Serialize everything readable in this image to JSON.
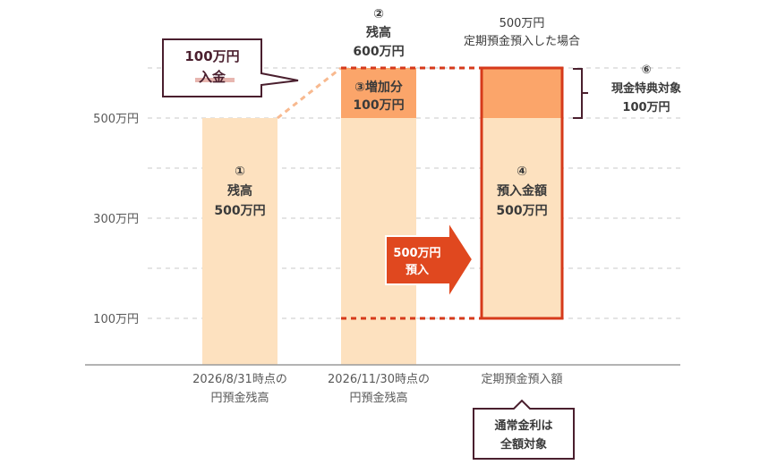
{
  "chart_data": {
    "type": "bar",
    "yticks": [
      {
        "value": 100,
        "label": "100万円"
      },
      {
        "value": 300,
        "label": "300万円"
      },
      {
        "value": 500,
        "label": "500万円"
      }
    ],
    "ylim": [
      5,
      700
    ],
    "dashed_grid_values": [
      100,
      200,
      300,
      400,
      500,
      600
    ],
    "categories": [
      {
        "lines": [
          "2026/8/31時点の",
          "円預金残高"
        ]
      },
      {
        "lines": [
          "2026/11/30時点の",
          "円預金残高"
        ]
      },
      {
        "lines": [
          "定期預金預入額"
        ]
      }
    ],
    "bars": [
      {
        "category": 0,
        "segments": [
          {
            "from": 0,
            "to": 500,
            "color": "#fde1bf"
          }
        ],
        "label_lines": [
          "①",
          "残高",
          "500万円"
        ]
      },
      {
        "category": 1,
        "segments": [
          {
            "from": 0,
            "to": 500,
            "color": "#fde1bf"
          },
          {
            "from": 500,
            "to": 600,
            "color": "#fba56a"
          }
        ],
        "top_label_lines": [
          "②",
          "残高",
          "600万円"
        ],
        "segment_label_lines": [
          "③増加分",
          "100万円"
        ]
      },
      {
        "category": 2,
        "segments": [
          {
            "from": 100,
            "to": 500,
            "color": "#fde1bf"
          },
          {
            "from": 500,
            "to": 600,
            "color": "#fba56a"
          }
        ],
        "outline_color": "#d63a1b",
        "top_label_lines": [
          "500万円",
          "定期預金預入した場合"
        ],
        "label_lines": [
          "④",
          "預入金額",
          "500万円"
        ]
      }
    ],
    "annotations": {
      "deposit_callout": [
        "100万円",
        "入金"
      ],
      "arrow_label": [
        "500万円",
        "預入"
      ],
      "bracket_label": [
        "⑥",
        "現金特典対象",
        "100万円"
      ],
      "bottom_callout": [
        "通常金利は",
        "全額対象"
      ]
    },
    "colors": {
      "light": "#fde1bf",
      "orange": "#fba56a",
      "red": "#d63a1b",
      "arrow": "#e0481f",
      "dark": "#4a1f2e",
      "underline": "#e7b6b0",
      "grid": "#c8c8c8",
      "axis": "#9a9a9a"
    }
  }
}
